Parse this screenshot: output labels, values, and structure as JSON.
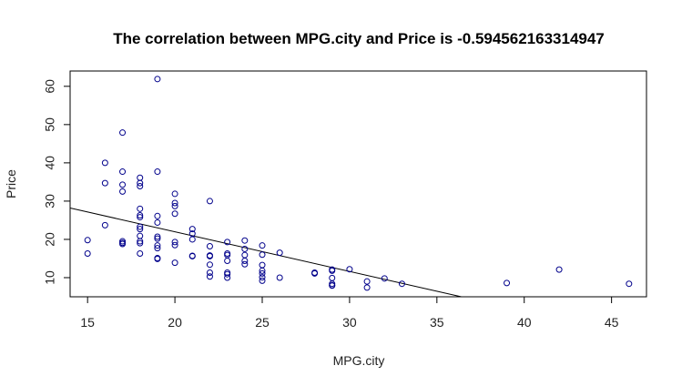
{
  "chart_data": {
    "type": "scatter",
    "title": "The correlation between MPG.city  and  Price  is  -0.594562163314947",
    "xlabel": "MPG.city",
    "ylabel": "Price",
    "xlim": [
      14,
      47
    ],
    "ylim": [
      5,
      64
    ],
    "xticks": [
      15,
      20,
      25,
      30,
      35,
      40,
      45
    ],
    "yticks": [
      10,
      20,
      30,
      40,
      50,
      60
    ],
    "grid": false,
    "point_color": "#00008B",
    "line_color": "#000000",
    "regression_line": {
      "x": [
        14,
        36.4
      ],
      "y": [
        28.2,
        5
      ]
    },
    "points": [
      {
        "x": 15,
        "y": 19.8
      },
      {
        "x": 15,
        "y": 16.3
      },
      {
        "x": 16,
        "y": 40.0
      },
      {
        "x": 16,
        "y": 34.7
      },
      {
        "x": 16,
        "y": 23.7
      },
      {
        "x": 17,
        "y": 47.9
      },
      {
        "x": 17,
        "y": 37.7
      },
      {
        "x": 17,
        "y": 34.3
      },
      {
        "x": 17,
        "y": 32.5
      },
      {
        "x": 17,
        "y": 19.5
      },
      {
        "x": 17,
        "y": 19.1
      },
      {
        "x": 17,
        "y": 18.8
      },
      {
        "x": 18,
        "y": 36.1
      },
      {
        "x": 18,
        "y": 34.7
      },
      {
        "x": 18,
        "y": 33.9
      },
      {
        "x": 18,
        "y": 28.0
      },
      {
        "x": 18,
        "y": 26.3
      },
      {
        "x": 18,
        "y": 25.8
      },
      {
        "x": 18,
        "y": 23.3
      },
      {
        "x": 18,
        "y": 22.7
      },
      {
        "x": 18,
        "y": 20.9
      },
      {
        "x": 18,
        "y": 19.5
      },
      {
        "x": 18,
        "y": 19.0
      },
      {
        "x": 18,
        "y": 16.3
      },
      {
        "x": 19,
        "y": 61.9
      },
      {
        "x": 19,
        "y": 37.7
      },
      {
        "x": 19,
        "y": 26.1
      },
      {
        "x": 19,
        "y": 24.4
      },
      {
        "x": 19,
        "y": 20.7
      },
      {
        "x": 19,
        "y": 20.2
      },
      {
        "x": 19,
        "y": 18.4
      },
      {
        "x": 19,
        "y": 17.7
      },
      {
        "x": 19,
        "y": 15.1
      },
      {
        "x": 19,
        "y": 14.9
      },
      {
        "x": 20,
        "y": 31.9
      },
      {
        "x": 20,
        "y": 29.5
      },
      {
        "x": 20,
        "y": 28.7
      },
      {
        "x": 20,
        "y": 26.7
      },
      {
        "x": 20,
        "y": 19.3
      },
      {
        "x": 20,
        "y": 18.5
      },
      {
        "x": 20,
        "y": 13.9
      },
      {
        "x": 21,
        "y": 22.7
      },
      {
        "x": 21,
        "y": 21.5
      },
      {
        "x": 21,
        "y": 20.0
      },
      {
        "x": 21,
        "y": 15.7
      },
      {
        "x": 21,
        "y": 15.6
      },
      {
        "x": 22,
        "y": 30.0
      },
      {
        "x": 22,
        "y": 18.2
      },
      {
        "x": 22,
        "y": 15.8
      },
      {
        "x": 22,
        "y": 15.6
      },
      {
        "x": 22,
        "y": 13.4
      },
      {
        "x": 22,
        "y": 11.3
      },
      {
        "x": 22,
        "y": 10.3
      },
      {
        "x": 23,
        "y": 19.3
      },
      {
        "x": 23,
        "y": 16.3
      },
      {
        "x": 23,
        "y": 15.9
      },
      {
        "x": 23,
        "y": 14.4
      },
      {
        "x": 23,
        "y": 11.3
      },
      {
        "x": 23,
        "y": 10.9
      },
      {
        "x": 23,
        "y": 10.0
      },
      {
        "x": 24,
        "y": 19.7
      },
      {
        "x": 24,
        "y": 17.5
      },
      {
        "x": 24,
        "y": 15.9
      },
      {
        "x": 24,
        "y": 14.4
      },
      {
        "x": 24,
        "y": 13.5
      },
      {
        "x": 25,
        "y": 18.4
      },
      {
        "x": 25,
        "y": 16.0
      },
      {
        "x": 25,
        "y": 13.3
      },
      {
        "x": 25,
        "y": 11.8
      },
      {
        "x": 25,
        "y": 11.1
      },
      {
        "x": 25,
        "y": 10.1
      },
      {
        "x": 25,
        "y": 9.2
      },
      {
        "x": 26,
        "y": 16.5
      },
      {
        "x": 26,
        "y": 10.0
      },
      {
        "x": 28,
        "y": 11.3
      },
      {
        "x": 28,
        "y": 11.1
      },
      {
        "x": 29,
        "y": 12.1
      },
      {
        "x": 29,
        "y": 11.8
      },
      {
        "x": 29,
        "y": 9.9
      },
      {
        "x": 29,
        "y": 8.4
      },
      {
        "x": 29,
        "y": 8.0
      },
      {
        "x": 29,
        "y": 7.9
      },
      {
        "x": 30,
        "y": 12.2
      },
      {
        "x": 31,
        "y": 9.0
      },
      {
        "x": 31,
        "y": 7.4
      },
      {
        "x": 32,
        "y": 9.8
      },
      {
        "x": 33,
        "y": 8.4
      },
      {
        "x": 39,
        "y": 8.6
      },
      {
        "x": 42,
        "y": 12.1
      },
      {
        "x": 46,
        "y": 8.4
      }
    ]
  }
}
